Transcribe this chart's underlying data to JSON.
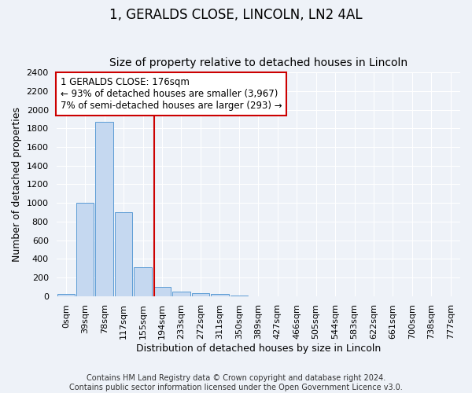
{
  "title": "1, GERALDS CLOSE, LINCOLN, LN2 4AL",
  "subtitle": "Size of property relative to detached houses in Lincoln",
  "xlabel": "Distribution of detached houses by size in Lincoln",
  "ylabel": "Number of detached properties",
  "bar_color": "#c5d8f0",
  "bar_edge_color": "#5b9bd5",
  "bins": [
    "0sqm",
    "39sqm",
    "78sqm",
    "117sqm",
    "155sqm",
    "194sqm",
    "233sqm",
    "272sqm",
    "311sqm",
    "350sqm",
    "389sqm",
    "427sqm",
    "466sqm",
    "505sqm",
    "544sqm",
    "583sqm",
    "622sqm",
    "661sqm",
    "700sqm",
    "738sqm",
    "777sqm"
  ],
  "values": [
    20,
    1005,
    1870,
    900,
    310,
    100,
    50,
    30,
    20,
    5,
    0,
    0,
    0,
    0,
    0,
    0,
    0,
    0,
    0,
    0,
    0
  ],
  "vline_x": 4.59,
  "vline_color": "#cc0000",
  "annotation_line1": "1 GERALDS CLOSE: 176sqm",
  "annotation_line2": "← 93% of detached houses are smaller (3,967)",
  "annotation_line3": "7% of semi-detached houses are larger (293) →",
  "annotation_box_color": "#ffffff",
  "annotation_box_edge_color": "#cc0000",
  "ylim": [
    0,
    2400
  ],
  "yticks": [
    0,
    200,
    400,
    600,
    800,
    1000,
    1200,
    1400,
    1600,
    1800,
    2000,
    2200,
    2400
  ],
  "footer_text": "Contains HM Land Registry data © Crown copyright and database right 2024.\nContains public sector information licensed under the Open Government Licence v3.0.",
  "background_color": "#eef2f8",
  "grid_color": "#ffffff",
  "title_fontsize": 12,
  "subtitle_fontsize": 10,
  "axis_label_fontsize": 9,
  "tick_fontsize": 8,
  "footer_fontsize": 7
}
